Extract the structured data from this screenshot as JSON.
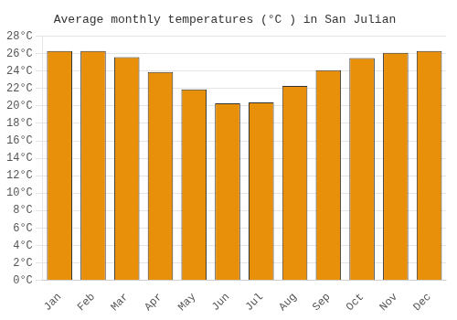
{
  "chart_data": {
    "type": "bar",
    "title": "Average monthly temperatures (°C ) in San Julian",
    "categories": [
      "Jan",
      "Feb",
      "Mar",
      "Apr",
      "May",
      "Jun",
      "Jul",
      "Aug",
      "Sep",
      "Oct",
      "Nov",
      "Dec"
    ],
    "values": [
      26.3,
      26.3,
      25.6,
      23.9,
      21.9,
      20.3,
      20.4,
      22.3,
      24.1,
      25.5,
      26.1,
      26.3
    ],
    "color": "#E8900A",
    "ylim": [
      0,
      28
    ],
    "yticks": [
      {
        "value": 0,
        "label": "0°C"
      },
      {
        "value": 2,
        "label": "2°C"
      },
      {
        "value": 4,
        "label": "4°C"
      },
      {
        "value": 6,
        "label": "6°C"
      },
      {
        "value": 8,
        "label": "8°C"
      },
      {
        "value": 10,
        "label": "10°C"
      },
      {
        "value": 12,
        "label": "12°C"
      },
      {
        "value": 14,
        "label": "14°C"
      },
      {
        "value": 16,
        "label": "16°C"
      },
      {
        "value": 18,
        "label": "18°C"
      },
      {
        "value": 20,
        "label": "20°C"
      },
      {
        "value": 22,
        "label": "22°C"
      },
      {
        "value": 24,
        "label": "24°C"
      },
      {
        "value": 26,
        "label": "26°C"
      },
      {
        "value": 28,
        "label": "28°C"
      }
    ],
    "grid": true
  }
}
